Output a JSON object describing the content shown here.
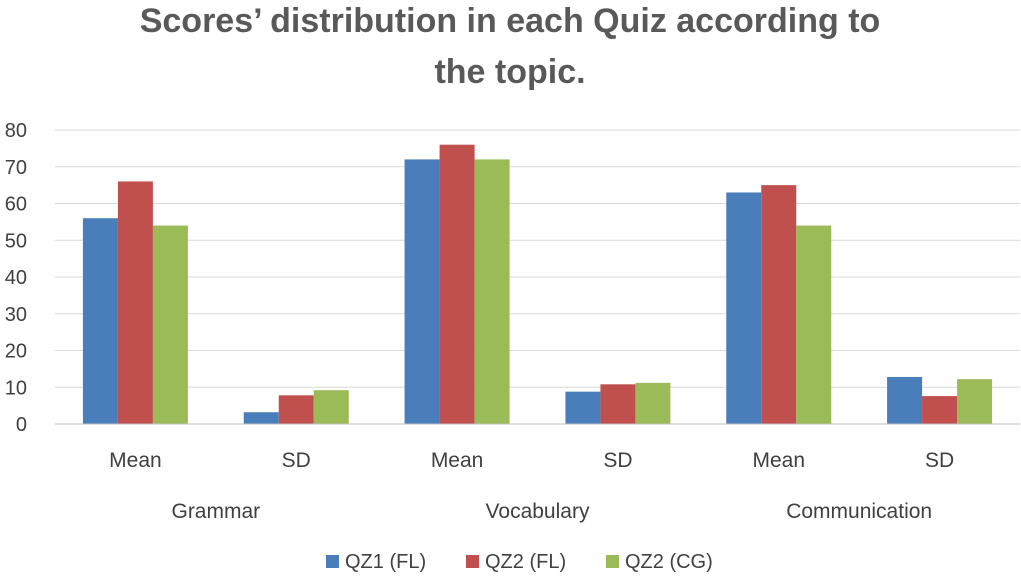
{
  "chart_data": {
    "type": "bar",
    "title": "Scores’ distribution in each Quiz according to the topic.",
    "title_lines": [
      "Scores’ distribution in each Quiz according to",
      "the topic."
    ],
    "categories": [
      "Mean",
      "SD",
      "Mean",
      "SD",
      "Mean",
      "SD"
    ],
    "groups": [
      "Grammar",
      "Vocabulary",
      "Communication"
    ],
    "series": [
      {
        "name": "QZ1 (FL)",
        "color": "#4a7ebb",
        "values": [
          56,
          3.2,
          72,
          8.8,
          63,
          12.8
        ]
      },
      {
        "name": "QZ2 (FL)",
        "color": "#c0504d",
        "values": [
          66,
          7.8,
          76,
          10.8,
          65,
          7.6
        ]
      },
      {
        "name": "QZ2 (CG)",
        "color": "#9bbb59",
        "values": [
          54,
          9.2,
          72,
          11.2,
          54,
          12.2
        ]
      }
    ],
    "y_ticks": [
      "0",
      "10",
      "20",
      "30",
      "40",
      "50",
      "60",
      "70",
      "80"
    ],
    "ylim": [
      0,
      80
    ],
    "xlabel": "",
    "ylabel": "",
    "grid": true,
    "legend_position": "bottom"
  }
}
